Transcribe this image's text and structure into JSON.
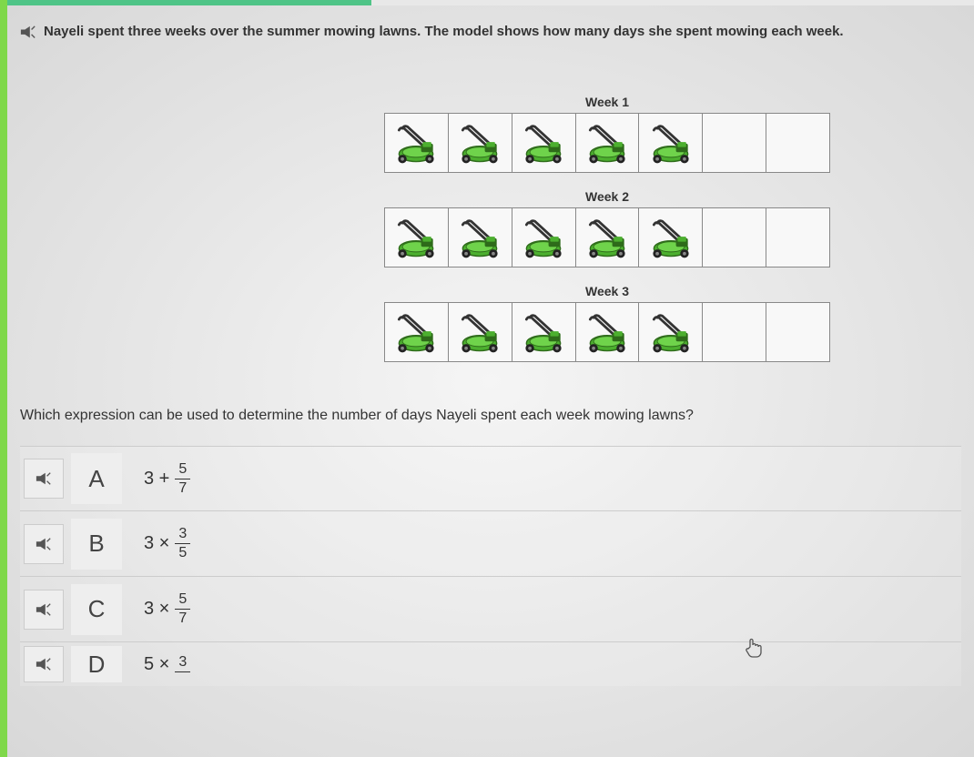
{
  "colors": {
    "left_edge": "#7fd84a",
    "top_bar": "#4fc487",
    "mower_body": "#4caf2f",
    "mower_dark": "#2e6b1a",
    "mower_handle": "#333333",
    "wheel": "#222222",
    "cell_border": "#888888",
    "text": "#333333"
  },
  "question": {
    "text": "Nayeli spent three weeks over the summer mowing lawns. The model shows how many days she spent mowing each week."
  },
  "weeks": [
    {
      "label": "Week 1",
      "total_cells": 7,
      "filled": 5
    },
    {
      "label": "Week 2",
      "total_cells": 7,
      "filled": 5
    },
    {
      "label": "Week 3",
      "total_cells": 7,
      "filled": 5
    }
  ],
  "followup": "Which expression can be used to determine the number of days Nayeli spent each week mowing lawns?",
  "answers": [
    {
      "letter": "A",
      "prefix": "3 +",
      "num": "5",
      "den": "7"
    },
    {
      "letter": "B",
      "prefix": "3 ×",
      "num": "3",
      "den": "5"
    },
    {
      "letter": "C",
      "prefix": "3 ×",
      "num": "5",
      "den": "7"
    },
    {
      "letter": "D",
      "prefix": "5 ×",
      "num": "3",
      "den": ""
    }
  ]
}
